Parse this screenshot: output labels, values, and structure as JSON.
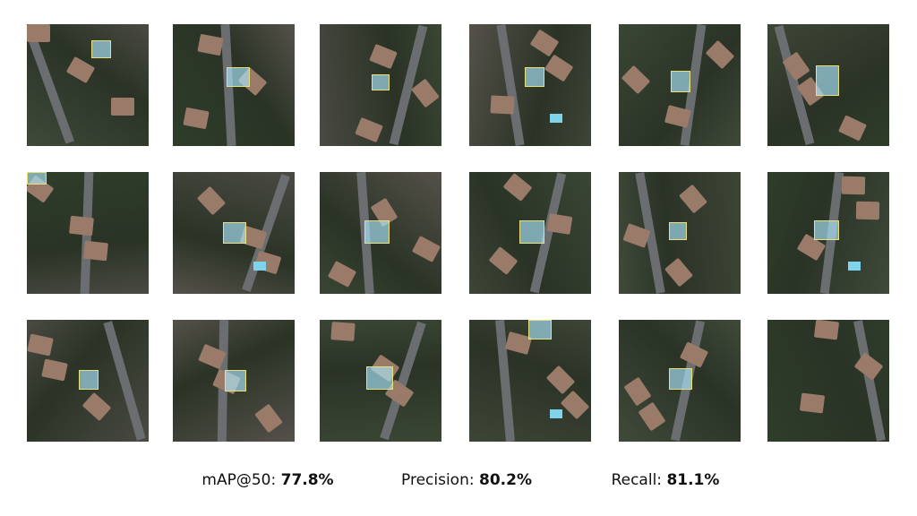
{
  "metrics": [
    {
      "label": "mAP@50:",
      "value": "77.8%"
    },
    {
      "label": "Precision:",
      "value": "80.2%"
    },
    {
      "label": "Recall:",
      "value": "81.1%"
    }
  ]
}
